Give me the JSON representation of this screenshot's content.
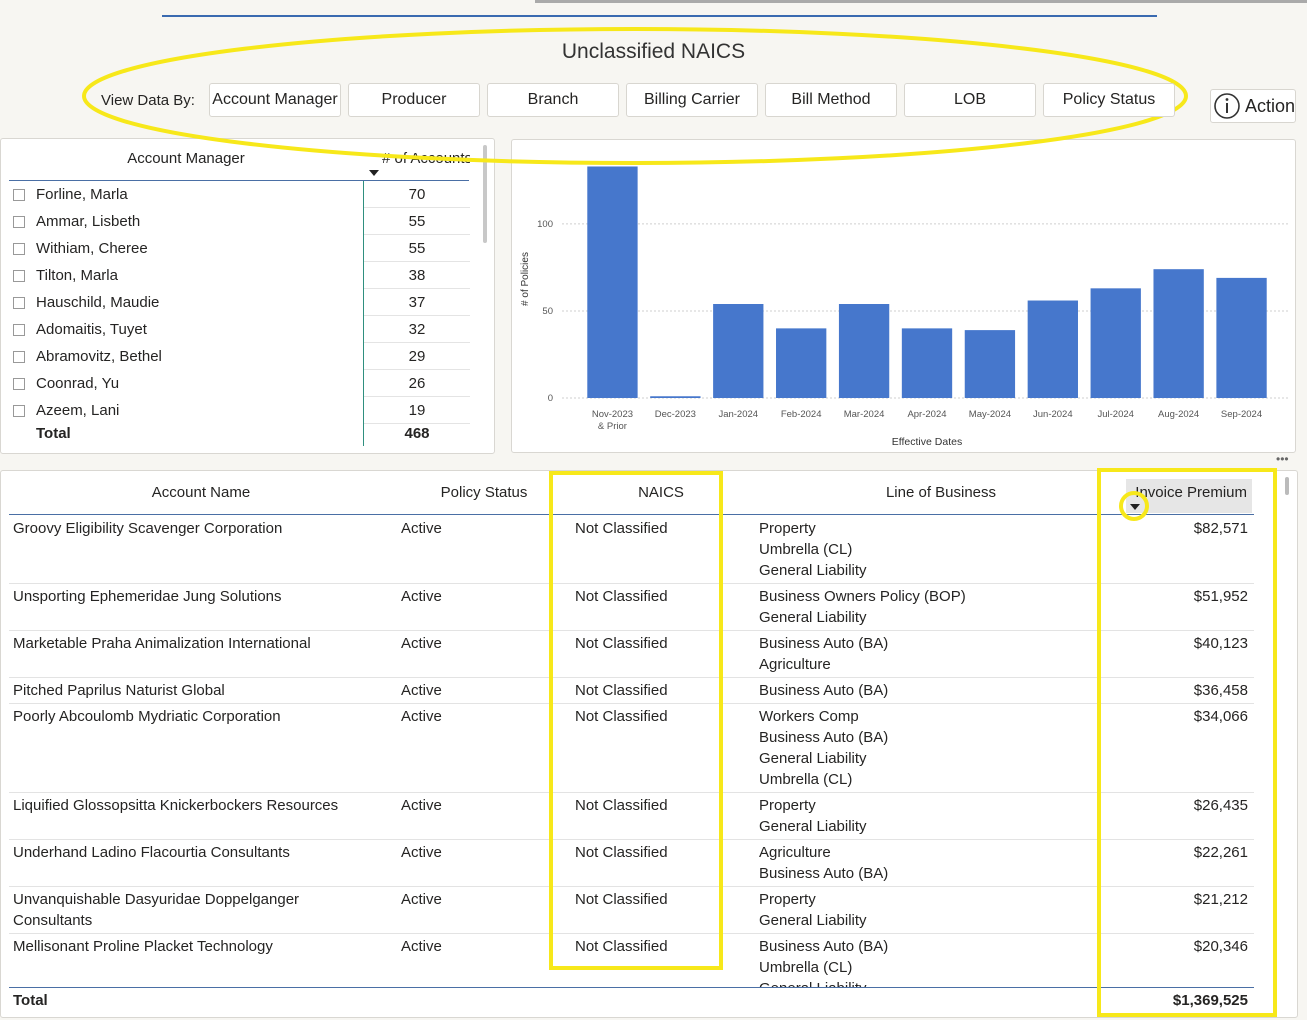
{
  "header": {
    "title": "Unclassified NAICS",
    "view_label": "View Data By:",
    "buttons": [
      "Account Manager",
      "Producer",
      "Branch",
      "Billing Carrier",
      "Bill Method",
      "LOB",
      "Policy Status"
    ],
    "action": "Action"
  },
  "manager_table": {
    "columns": [
      "Account Manager",
      "# of Accounts"
    ],
    "rows": [
      [
        "Forline, Marla",
        70
      ],
      [
        "Ammar, Lisbeth",
        55
      ],
      [
        "Withiam, Cheree",
        55
      ],
      [
        "Tilton, Marla",
        38
      ],
      [
        "Hauschild, Maudie",
        37
      ],
      [
        "Adomaitis, Tuyet",
        32
      ],
      [
        "Abramovitz, Bethel",
        29
      ],
      [
        "Coonrad, Yu",
        26
      ],
      [
        "Azeem, Lani",
        19
      ]
    ],
    "total": [
      "Total",
      468
    ]
  },
  "chart_data": {
    "type": "bar",
    "x_label": "Effective Dates",
    "y_label": "# of Policies",
    "categories": [
      "Nov-2023 & Prior",
      "Dec-2023",
      "Jan-2024",
      "Feb-2024",
      "Mar-2024",
      "Apr-2024",
      "May-2024",
      "Jun-2024",
      "Jul-2024",
      "Aug-2024",
      "Sep-2024"
    ],
    "values": [
      133,
      1,
      54,
      40,
      54,
      40,
      39,
      56,
      63,
      74,
      69
    ],
    "color": "#4677cc",
    "ylim": [
      0,
      135
    ],
    "yticks": [
      0,
      50,
      100
    ],
    "grid": true
  },
  "detail_table": {
    "columns": [
      "Account Name",
      "Policy Status",
      "NAICS",
      "Line of Business",
      "Invoice Premium"
    ],
    "rows": [
      {
        "account": "Groovy Eligibility Scavenger Corporation",
        "status": "Active",
        "naics": "Not Classified",
        "lob": [
          "Property",
          "Umbrella (CL)",
          "General Liability"
        ],
        "premium": "$82,571"
      },
      {
        "account": "Unsporting Ephemeridae Jung Solutions",
        "status": "Active",
        "naics": "Not Classified",
        "lob": [
          "Business Owners Policy (BOP)",
          "General Liability"
        ],
        "premium": "$51,952"
      },
      {
        "account": "Marketable Praha Animalization International",
        "status": "Active",
        "naics": "Not Classified",
        "lob": [
          "Business Auto (BA)",
          "Agriculture"
        ],
        "premium": "$40,123"
      },
      {
        "account": "Pitched Paprilus Naturist Global",
        "status": "Active",
        "naics": "Not Classified",
        "lob": [
          "Business Auto (BA)"
        ],
        "premium": "$36,458"
      },
      {
        "account": "Poorly Abcoulomb Mydriatic Corporation",
        "status": "Active",
        "naics": "Not Classified",
        "lob": [
          "Workers Comp",
          "Business Auto (BA)",
          "General Liability",
          "Umbrella (CL)"
        ],
        "premium": "$34,066"
      },
      {
        "account": "Liquified Glossopsitta Knickerbockers Resources",
        "status": "Active",
        "naics": "Not Classified",
        "lob": [
          "Property",
          "General Liability"
        ],
        "premium": "$26,435"
      },
      {
        "account": "Underhand Ladino Flacourtia Consultants",
        "status": "Active",
        "naics": "Not Classified",
        "lob": [
          "Agriculture",
          "Business Auto (BA)"
        ],
        "premium": "$22,261"
      },
      {
        "account": "Unvanquishable Dasyuridae Doppelganger Consultants",
        "status": "Active",
        "naics": "Not Classified",
        "lob": [
          "Property",
          "General Liability"
        ],
        "premium": "$21,212"
      },
      {
        "account": "Mellisonant Proline Placket Technology",
        "status": "Active",
        "naics": "Not Classified",
        "lob": [
          "Business Auto (BA)",
          "Umbrella (CL)",
          "General Liability"
        ],
        "premium": "$20,346"
      }
    ],
    "total": {
      "label": "Total",
      "premium": "$1,369,525"
    }
  }
}
